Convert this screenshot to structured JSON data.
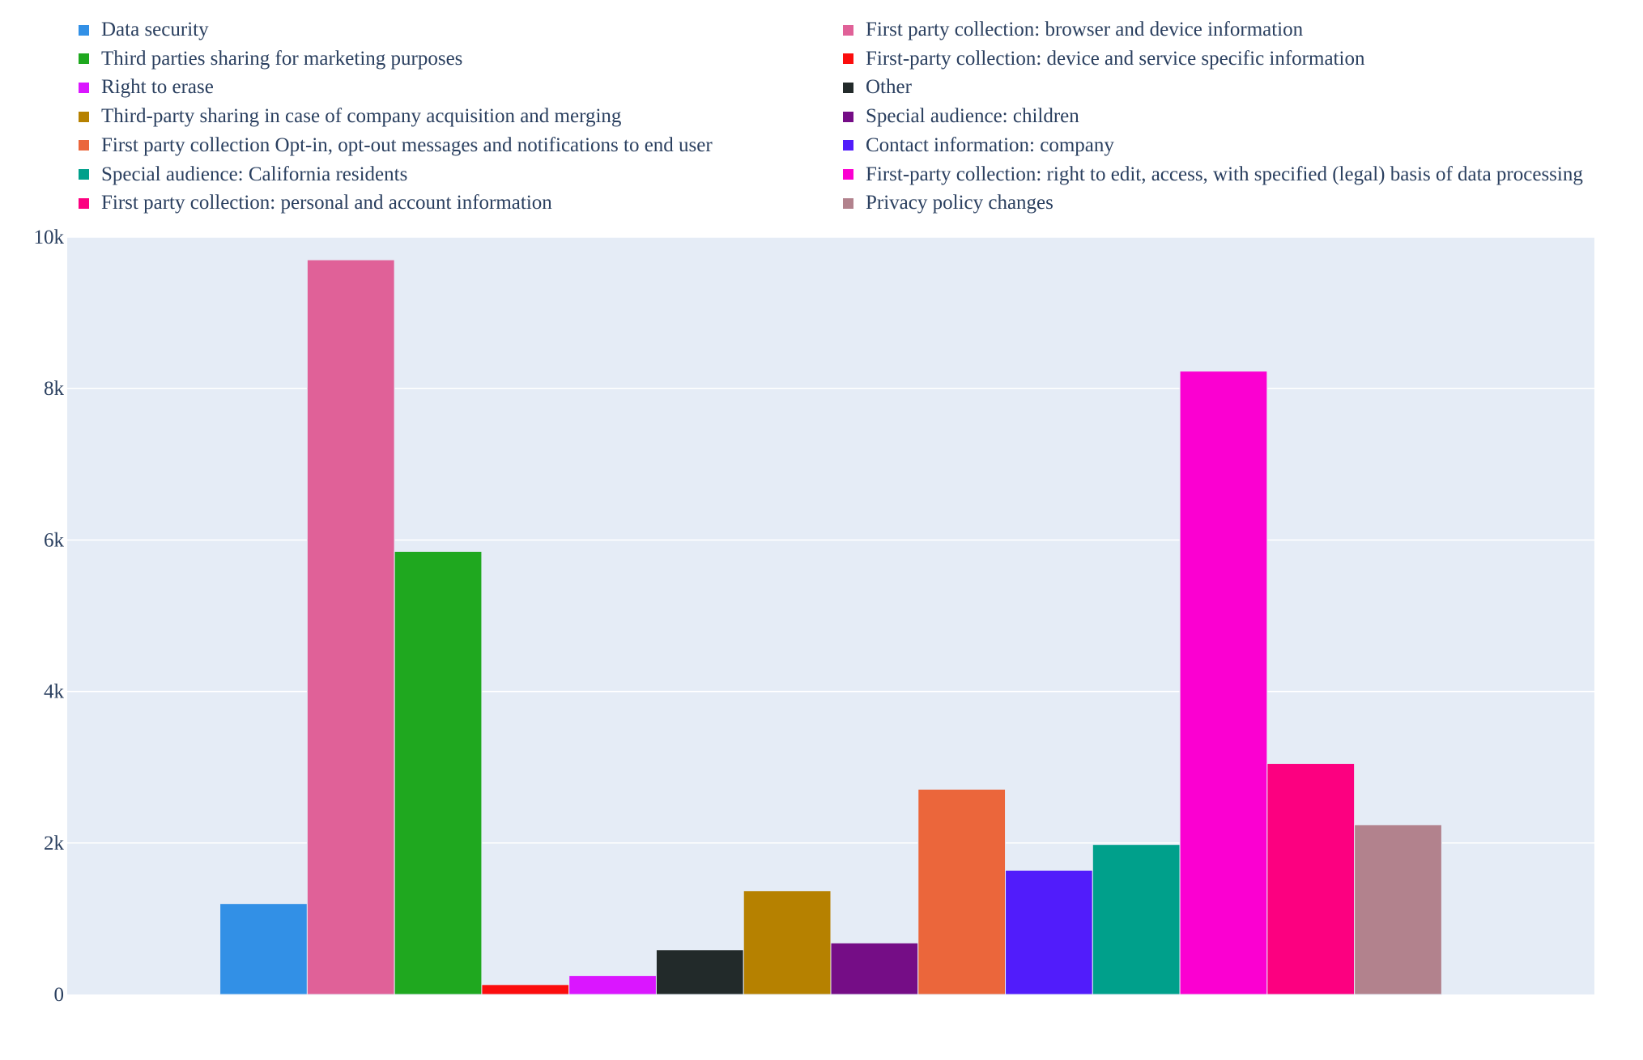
{
  "chart_data": {
    "type": "bar",
    "title": "",
    "xlabel": "",
    "ylabel": "",
    "ylim": [
      0,
      10000
    ],
    "y_ticks": [
      0,
      2000,
      4000,
      6000,
      8000,
      10000
    ],
    "y_tick_labels": [
      "0",
      "2k",
      "4k",
      "6k",
      "8k",
      "10k"
    ],
    "grid": true,
    "legend_placement": "top",
    "plot_background": "#e5ecf6",
    "series": [
      {
        "name": "Data security",
        "value": 1200,
        "color": "#3290e6"
      },
      {
        "name": "First party collection: browser and device information",
        "value": 9700,
        "color": "#e06198"
      },
      {
        "name": "Third parties sharing for marketing purposes",
        "value": 5850,
        "color": "#1fa81f"
      },
      {
        "name": "First-party collection: device and service specific information",
        "value": 130,
        "color": "#fb0d0d"
      },
      {
        "name": "Right to erase",
        "value": 250,
        "color": "#da16ff"
      },
      {
        "name": "Other",
        "value": 590,
        "color": "#222a2a"
      },
      {
        "name": "Third-party sharing in case of company acquisition and merging",
        "value": 1370,
        "color": "#b68100"
      },
      {
        "name": "Special audience: children",
        "value": 680,
        "color": "#750d86"
      },
      {
        "name": "First party collection Opt-in, opt-out messages and notifications to end user",
        "value": 2710,
        "color": "#eb663b"
      },
      {
        "name": "Contact information: company",
        "value": 1640,
        "color": "#511cfb"
      },
      {
        "name": "Special audience: California residents",
        "value": 1980,
        "color": "#00a08b"
      },
      {
        "name": "First-party collection: right to edit, access, with specified (legal) basis of data processing",
        "value": 8230,
        "color": "#fb00d1"
      },
      {
        "name": "First party collection: personal and account information",
        "value": 3050,
        "color": "#fc0080"
      },
      {
        "name": "Privacy policy changes",
        "value": 2240,
        "color": "#b2828d"
      }
    ],
    "legend_order": [
      "Data security",
      "Third parties sharing for marketing purposes",
      "Right to erase",
      "Third-party sharing in case of company acquisition and merging",
      "First party collection Opt-in, opt-out messages and notifications to end user",
      "Special audience: California residents",
      "First party collection: personal and account information",
      "First party collection: browser and device information",
      "First-party collection: device and service specific information",
      "Other",
      "Special audience: children",
      "Contact information: company",
      "First-party collection: right to edit, access, with specified (legal) basis of data processing",
      "Privacy policy changes"
    ]
  }
}
